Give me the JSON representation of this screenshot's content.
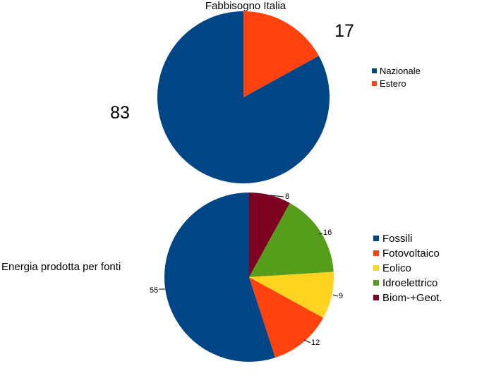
{
  "chart_data": [
    {
      "type": "pie",
      "title": "Fabbisogno Italia",
      "categories": [
        "Estero",
        "Nazionale"
      ],
      "values": [
        17,
        83
      ],
      "colors": [
        "#ff420e",
        "#004586"
      ],
      "legend": {
        "placement": "right",
        "entries": [
          {
            "label": "Nazionale",
            "color": "#004586"
          },
          {
            "label": "Estero",
            "color": "#ff420e"
          }
        ]
      },
      "data_labels": [
        "17",
        "83"
      ]
    },
    {
      "type": "pie",
      "title": "Energia prodotta per fonti",
      "categories": [
        "Biom-+Geot.",
        "Idroelettrico",
        "Eolico",
        "Fotovoltaico",
        "Fossili"
      ],
      "values": [
        8,
        16,
        9,
        12,
        55
      ],
      "colors": [
        "#7e0021",
        "#579d1c",
        "#ffd320",
        "#ff420e",
        "#004586"
      ],
      "legend": {
        "placement": "right",
        "entries": [
          {
            "label": "Fossili",
            "color": "#004586"
          },
          {
            "label": "Fotovoltaico",
            "color": "#ff420e"
          },
          {
            "label": "Eolico",
            "color": "#ffd320"
          },
          {
            "label": "Idroelettrico",
            "color": "#579d1c"
          },
          {
            "label": "Biom-+Geot.",
            "color": "#7e0021"
          }
        ]
      },
      "data_labels": [
        "8",
        "16",
        "9",
        "12",
        "55"
      ]
    }
  ]
}
